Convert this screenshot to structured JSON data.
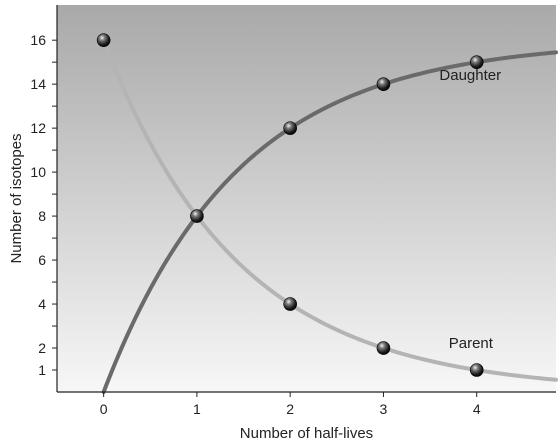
{
  "chart_data": {
    "type": "line",
    "title": "",
    "xlabel": "Number of half-lives",
    "ylabel": "Number of isotopes",
    "xlim": [
      -0.5,
      4.85
    ],
    "ylim": [
      0,
      17.6
    ],
    "grid": false,
    "x_ticks": [
      0,
      1,
      2,
      3,
      4
    ],
    "y_ticks": [
      1,
      2,
      4,
      6,
      8,
      10,
      12,
      14,
      16
    ],
    "y_minor_ticks": [
      1,
      3,
      5,
      7,
      9,
      11,
      13,
      15
    ],
    "colors": {
      "daughter": "#6a6a6a",
      "parent": "#b4b4b4",
      "background_top": "#a9a9a9",
      "background_bottom": "#f7f7f7"
    },
    "series": [
      {
        "name": "Daughter",
        "x": [
          0,
          1,
          2,
          3,
          4
        ],
        "y": [
          0,
          8,
          12,
          14,
          15
        ]
      },
      {
        "name": "Parent",
        "x": [
          0,
          1,
          2,
          3,
          4
        ],
        "y": [
          16,
          8,
          4,
          2,
          1
        ]
      }
    ],
    "markers": [
      {
        "x": 0,
        "y": 16
      },
      {
        "x": 1,
        "y": 8
      },
      {
        "x": 2,
        "y": 12
      },
      {
        "x": 3,
        "y": 14
      },
      {
        "x": 4,
        "y": 15
      },
      {
        "x": 2,
        "y": 4
      },
      {
        "x": 3,
        "y": 2
      },
      {
        "x": 4,
        "y": 1
      }
    ],
    "series_labels": [
      {
        "text": "Daughter",
        "x": 3.6,
        "y": 14.2
      },
      {
        "text": "Parent",
        "x": 3.7,
        "y": 2.0
      }
    ]
  }
}
